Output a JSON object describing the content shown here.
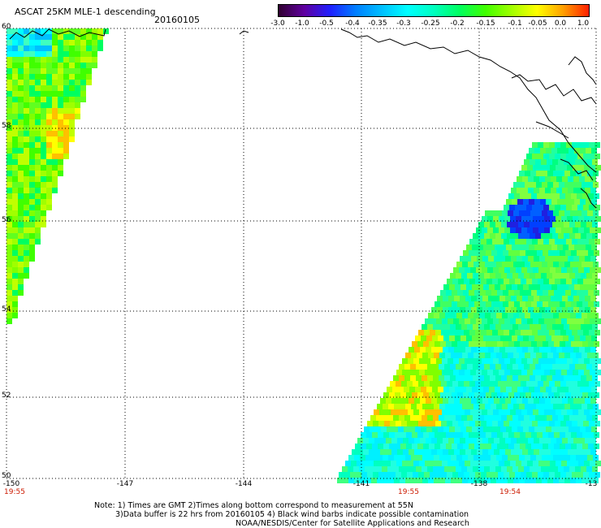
{
  "header": {
    "title": "ASCAT 25KM MLE-1 descending",
    "date": "20160105"
  },
  "colorbar": {
    "labels": [
      "-3.0",
      "-1.0",
      "-0.5",
      "-0.4",
      "-0.35",
      "-0.3",
      "-0.25",
      "-0.2",
      "-0.15",
      "-0.1",
      "-0.05",
      "0.0",
      "1.0"
    ],
    "colors": [
      "#300030",
      "#6000a0",
      "#2020ff",
      "#0080ff",
      "#00c0ff",
      "#00ffff",
      "#00ffc0",
      "#00ff60",
      "#40ff00",
      "#a0ff00",
      "#ffff00",
      "#ffa000",
      "#ff2000"
    ]
  },
  "map": {
    "lat_labels": [
      "60",
      "58",
      "56",
      "54",
      "52",
      "50"
    ],
    "lon_labels": [
      "-150",
      "-147",
      "-144",
      "-141",
      "-138",
      "-13"
    ],
    "time_labels": [
      "19:55",
      "19:55",
      "19:54"
    ]
  },
  "notes": {
    "line1": "Note: 1) Times are GMT 2)Times along bottom correspond to measurement at 55N",
    "line2": "3)Data buffer is 22 hrs from 20160105 4) Black wind barbs indicate possible contamination",
    "line3": "NOAA/NESDIS/Center for Satellite Applications and Research"
  }
}
